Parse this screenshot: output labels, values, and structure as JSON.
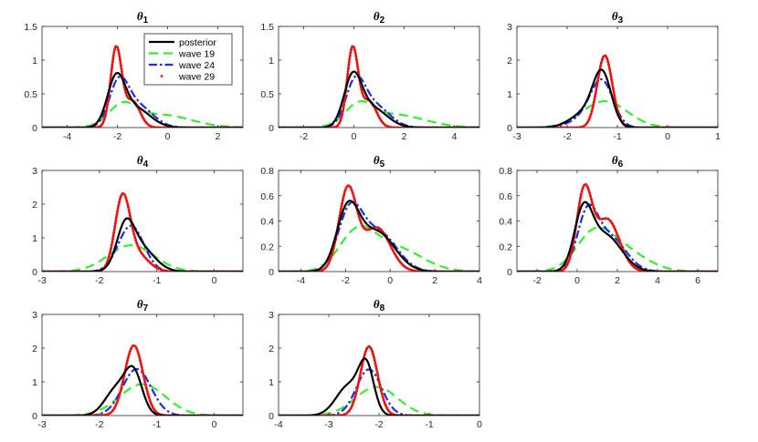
{
  "figure": {
    "background": "#ffffff"
  },
  "series_styles": [
    {
      "key": "posterior",
      "label": "posterior",
      "color": "#000000",
      "dash": "solid"
    },
    {
      "key": "wave19",
      "label": "wave 19",
      "color": "#33ee33",
      "dash": "dashed"
    },
    {
      "key": "wave24",
      "label": "wave 24",
      "color": "#1f2fd8",
      "dash": "dashdot"
    },
    {
      "key": "wave29",
      "label": "wave 29",
      "color": "#ee1111",
      "dash": "dotted"
    }
  ],
  "legend": {
    "panel": 0,
    "position": "top-right"
  },
  "chart_data": [
    {
      "type": "line",
      "title": "θ",
      "subscript": "1",
      "xlim": [
        -5,
        3
      ],
      "ylim": [
        0,
        1.5
      ],
      "xticks": [
        -4,
        -2,
        0,
        2
      ],
      "yticks": [
        0,
        0.5,
        1,
        1.5
      ],
      "xtick_labels": [
        "-4",
        "-2",
        "0",
        "2"
      ],
      "ytick_labels": [
        "0",
        "0.5",
        "1",
        "1.5"
      ],
      "series": {
        "posterior": {
          "parts": [
            {
              "mu": -2.05,
              "sd": 0.35,
              "w": 0.7
            },
            {
              "mu": -1.3,
              "sd": 0.6,
              "w": 0.3
            }
          ],
          "peak": 0.81
        },
        "wave19": {
          "parts": [
            {
              "mu": -1.8,
              "sd": 0.55,
              "w": 0.6
            },
            {
              "mu": -0.3,
              "sd": 1.2,
              "w": 0.4
            }
          ],
          "peak": 0.38
        },
        "wave24": {
          "parts": [
            {
              "mu": -1.95,
              "sd": 0.38,
              "w": 0.65
            },
            {
              "mu": -1.2,
              "sd": 0.6,
              "w": 0.35
            }
          ],
          "peak": 0.76
        },
        "wave29": {
          "parts": [
            {
              "mu": -2.05,
              "sd": 0.22,
              "w": 0.75
            },
            {
              "mu": -1.4,
              "sd": 0.3,
              "w": 0.25
            }
          ],
          "peak": 1.21
        }
      }
    },
    {
      "type": "line",
      "title": "θ",
      "subscript": "2",
      "xlim": [
        -3,
        5
      ],
      "ylim": [
        0,
        1.5
      ],
      "xticks": [
        -2,
        0,
        2,
        4
      ],
      "yticks": [
        0,
        0.5,
        1,
        1.5
      ],
      "xtick_labels": [
        "-2",
        "0",
        "2",
        "4"
      ],
      "ytick_labels": [
        "0",
        "0.5",
        "1",
        "1.5"
      ],
      "series": {
        "posterior": {
          "parts": [
            {
              "mu": -0.05,
              "sd": 0.35,
              "w": 0.7
            },
            {
              "mu": 0.7,
              "sd": 0.6,
              "w": 0.3
            }
          ],
          "peak": 0.83
        },
        "wave19": {
          "parts": [
            {
              "mu": 0.2,
              "sd": 0.55,
              "w": 0.6
            },
            {
              "mu": 1.6,
              "sd": 1.2,
              "w": 0.4
            }
          ],
          "peak": 0.39
        },
        "wave24": {
          "parts": [
            {
              "mu": 0.05,
              "sd": 0.38,
              "w": 0.65
            },
            {
              "mu": 0.8,
              "sd": 0.6,
              "w": 0.35
            }
          ],
          "peak": 0.77
        },
        "wave29": {
          "parts": [
            {
              "mu": -0.05,
              "sd": 0.22,
              "w": 0.75
            },
            {
              "mu": 0.6,
              "sd": 0.3,
              "w": 0.25
            }
          ],
          "peak": 1.21
        }
      }
    },
    {
      "type": "line",
      "title": "θ",
      "subscript": "3",
      "xlim": [
        -3,
        1
      ],
      "ylim": [
        0,
        3
      ],
      "xticks": [
        -3,
        -2,
        -1,
        0,
        1
      ],
      "yticks": [
        0,
        1,
        2,
        3
      ],
      "xtick_labels": [
        "-3",
        "-2",
        "-1",
        "0",
        "1"
      ],
      "ytick_labels": [
        "0",
        "1",
        "2",
        "3"
      ],
      "series": {
        "posterior": {
          "parts": [
            {
              "mu": -1.3,
              "sd": 0.18,
              "w": 0.75
            },
            {
              "mu": -1.6,
              "sd": 0.3,
              "w": 0.25
            }
          ],
          "peak": 1.72
        },
        "wave19": {
          "parts": [
            {
              "mu": -1.25,
              "sd": 0.45,
              "w": 1
            }
          ],
          "peak": 0.78
        },
        "wave24": {
          "parts": [
            {
              "mu": -1.3,
              "sd": 0.22,
              "w": 0.8
            },
            {
              "mu": -1.6,
              "sd": 0.3,
              "w": 0.2
            }
          ],
          "peak": 1.43
        },
        "wave29": {
          "parts": [
            {
              "mu": -1.25,
              "sd": 0.15,
              "w": 1
            }
          ],
          "peak": 2.14
        }
      }
    },
    {
      "type": "line",
      "title": "θ",
      "subscript": "4",
      "xlim": [
        -3,
        0.5
      ],
      "ylim": [
        0,
        3
      ],
      "xticks": [
        -3,
        -2,
        -1,
        0
      ],
      "yticks": [
        0,
        1,
        2,
        3
      ],
      "xtick_labels": [
        "-3",
        "-2",
        "-1",
        "0"
      ],
      "ytick_labels": [
        "0",
        "1",
        "2",
        "3"
      ],
      "series": {
        "posterior": {
          "parts": [
            {
              "mu": -1.55,
              "sd": 0.15,
              "w": 0.6
            },
            {
              "mu": -1.3,
              "sd": 0.25,
              "w": 0.4
            }
          ],
          "peak": 1.58
        },
        "wave19": {
          "parts": [
            {
              "mu": -1.45,
              "sd": 0.4,
              "w": 1
            }
          ],
          "peak": 0.78
        },
        "wave24": {
          "parts": [
            {
              "mu": -1.45,
              "sd": 0.22,
              "w": 1
            }
          ],
          "peak": 1.36
        },
        "wave29": {
          "parts": [
            {
              "mu": -1.6,
              "sd": 0.13,
              "w": 0.8
            },
            {
              "mu": -1.35,
              "sd": 0.2,
              "w": 0.2
            }
          ],
          "peak": 2.32
        }
      }
    },
    {
      "type": "line",
      "title": "θ",
      "subscript": "5",
      "xlim": [
        -5,
        4
      ],
      "ylim": [
        0,
        0.8
      ],
      "xticks": [
        -4,
        -2,
        0,
        2,
        4
      ],
      "yticks": [
        0,
        0.2,
        0.4,
        0.6,
        0.8
      ],
      "xtick_labels": [
        "-4",
        "-2",
        "0",
        "2",
        "4"
      ],
      "ytick_labels": [
        "0",
        "0.2",
        "0.4",
        "0.6",
        "0.8"
      ],
      "series": {
        "posterior": {
          "parts": [
            {
              "mu": -1.9,
              "sd": 0.5,
              "w": 0.6
            },
            {
              "mu": -0.6,
              "sd": 0.8,
              "w": 0.4
            }
          ],
          "peak": 0.56
        },
        "wave19": {
          "parts": [
            {
              "mu": -1.5,
              "sd": 0.8,
              "w": 0.6
            },
            {
              "mu": 0.2,
              "sd": 1.2,
              "w": 0.4
            }
          ],
          "peak": 0.36
        },
        "wave24": {
          "parts": [
            {
              "mu": -1.8,
              "sd": 0.55,
              "w": 0.6
            },
            {
              "mu": -0.5,
              "sd": 0.8,
              "w": 0.4
            }
          ],
          "peak": 0.55
        },
        "wave29": {
          "parts": [
            {
              "mu": -1.9,
              "sd": 0.4,
              "w": 0.65
            },
            {
              "mu": -0.6,
              "sd": 0.6,
              "w": 0.35
            }
          ],
          "peak": 0.68
        }
      }
    },
    {
      "type": "line",
      "title": "θ",
      "subscript": "6",
      "xlim": [
        -3,
        7
      ],
      "ylim": [
        0,
        0.8
      ],
      "xticks": [
        -2,
        0,
        2,
        4,
        6
      ],
      "yticks": [
        0,
        0.2,
        0.4,
        0.6,
        0.8
      ],
      "xtick_labels": [
        "-2",
        "0",
        "2",
        "4",
        "6"
      ],
      "ytick_labels": [
        "0",
        "0.2",
        "0.4",
        "0.6",
        "0.8"
      ],
      "series": {
        "posterior": {
          "parts": [
            {
              "mu": 0.3,
              "sd": 0.45,
              "w": 0.6
            },
            {
              "mu": 1.4,
              "sd": 0.8,
              "w": 0.4
            }
          ],
          "peak": 0.55
        },
        "wave19": {
          "parts": [
            {
              "mu": 0.8,
              "sd": 0.9,
              "w": 0.6
            },
            {
              "mu": 2.2,
              "sd": 1.2,
              "w": 0.4
            }
          ],
          "peak": 0.35
        },
        "wave24": {
          "parts": [
            {
              "mu": 0.5,
              "sd": 0.5,
              "w": 0.6
            },
            {
              "mu": 1.6,
              "sd": 0.8,
              "w": 0.4
            }
          ],
          "peak": 0.53
        },
        "wave29": {
          "parts": [
            {
              "mu": 0.35,
              "sd": 0.38,
              "w": 0.6
            },
            {
              "mu": 1.5,
              "sd": 0.6,
              "w": 0.4
            }
          ],
          "peak": 0.69
        }
      }
    },
    {
      "type": "line",
      "title": "θ",
      "subscript": "7",
      "xlim": [
        -3,
        0.5
      ],
      "ylim": [
        0,
        3
      ],
      "xticks": [
        -3,
        -2,
        -1,
        0
      ],
      "yticks": [
        0,
        1,
        2,
        3
      ],
      "xtick_labels": [
        "-3",
        "-2",
        "-1",
        "0"
      ],
      "ytick_labels": [
        "0",
        "1",
        "2",
        "3"
      ],
      "series": {
        "posterior": {
          "parts": [
            {
              "mu": -1.4,
              "sd": 0.15,
              "w": 0.6
            },
            {
              "mu": -1.7,
              "sd": 0.2,
              "w": 0.4
            }
          ],
          "peak": 1.47
        },
        "wave19": {
          "parts": [
            {
              "mu": -1.25,
              "sd": 0.4,
              "w": 1
            }
          ],
          "peak": 0.93
        },
        "wave24": {
          "parts": [
            {
              "mu": -1.35,
              "sd": 0.25,
              "w": 1
            }
          ],
          "peak": 1.38
        },
        "wave29": {
          "parts": [
            {
              "mu": -1.4,
              "sd": 0.16,
              "w": 1
            }
          ],
          "peak": 2.08
        }
      }
    },
    {
      "type": "line",
      "title": "θ",
      "subscript": "8",
      "xlim": [
        -4,
        0
      ],
      "ylim": [
        0,
        3
      ],
      "xticks": [
        -4,
        -3,
        -2,
        -1,
        0
      ],
      "yticks": [
        0,
        1,
        2,
        3
      ],
      "xtick_labels": [
        "-4",
        "-3",
        "-2",
        "-1",
        "0"
      ],
      "ytick_labels": [
        "0",
        "1",
        "2",
        "3"
      ],
      "series": {
        "posterior": {
          "parts": [
            {
              "mu": -2.25,
              "sd": 0.15,
              "w": 0.6
            },
            {
              "mu": -2.6,
              "sd": 0.25,
              "w": 0.4
            }
          ],
          "peak": 1.69
        },
        "wave19": {
          "parts": [
            {
              "mu": -2.05,
              "sd": 0.42,
              "w": 1
            }
          ],
          "peak": 0.85
        },
        "wave24": {
          "parts": [
            {
              "mu": -2.2,
              "sd": 0.25,
              "w": 1
            }
          ],
          "peak": 1.37
        },
        "wave29": {
          "parts": [
            {
              "mu": -2.2,
              "sd": 0.17,
              "w": 1
            }
          ],
          "peak": 2.05
        }
      }
    }
  ]
}
